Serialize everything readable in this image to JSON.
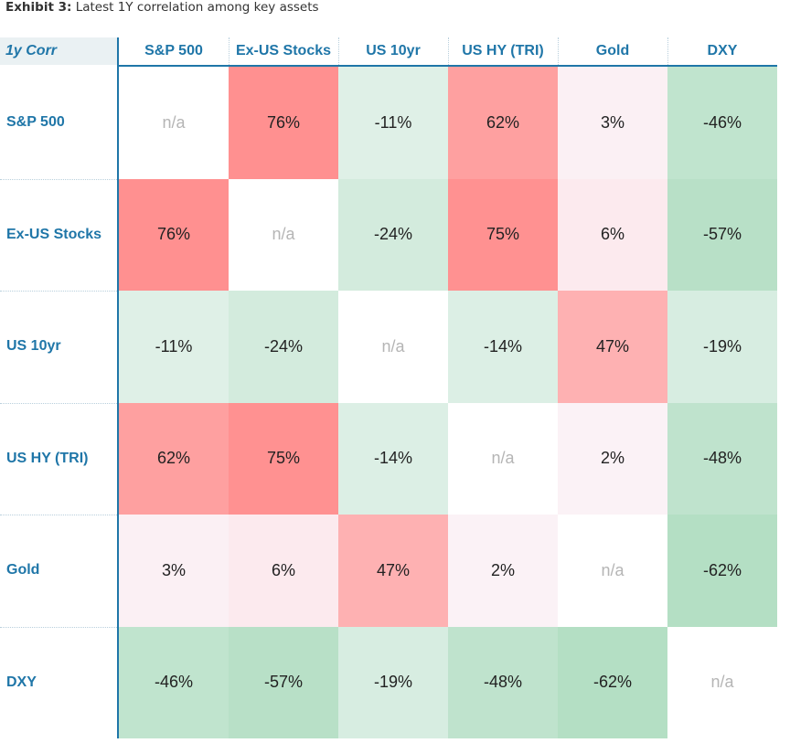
{
  "title": {
    "prefix": "Exhibit 3:",
    "text": " Latest 1Y correlation among key assets"
  },
  "corner_label": "1y Corr",
  "chart_data": {
    "type": "heatmap",
    "columns": [
      "S&P 500",
      "Ex-US Stocks",
      "US 10yr",
      "US HY (TRI)",
      "Gold",
      "DXY"
    ],
    "rows": [
      "S&P 500",
      "Ex-US Stocks",
      "US 10yr",
      "US HY (TRI)",
      "Gold",
      "DXY"
    ],
    "values": [
      [
        null,
        76,
        -11,
        62,
        3,
        -46
      ],
      [
        76,
        null,
        -24,
        75,
        6,
        -57
      ],
      [
        -11,
        -24,
        null,
        -14,
        47,
        -19
      ],
      [
        62,
        75,
        -14,
        null,
        2,
        -48
      ],
      [
        3,
        6,
        47,
        2,
        null,
        -62
      ],
      [
        -46,
        -57,
        -19,
        -48,
        -62,
        null
      ]
    ],
    "labels": [
      [
        "n/a",
        "76%",
        "-11%",
        "62%",
        "3%",
        "-46%"
      ],
      [
        "76%",
        "n/a",
        "-24%",
        "75%",
        "6%",
        "-57%"
      ],
      [
        "-11%",
        "-24%",
        "n/a",
        "-14%",
        "47%",
        "-19%"
      ],
      [
        "62%",
        "75%",
        "-14%",
        "n/a",
        "2%",
        "-48%"
      ],
      [
        "3%",
        "6%",
        "47%",
        "2%",
        "n/a",
        "-62%"
      ],
      [
        "-46%",
        "-57%",
        "-19%",
        "-48%",
        "-62%",
        "n/a"
      ]
    ],
    "colors": {
      "positive": "#ff9090",
      "negative": "#b4dfc4",
      "na": "#ffffff"
    }
  }
}
